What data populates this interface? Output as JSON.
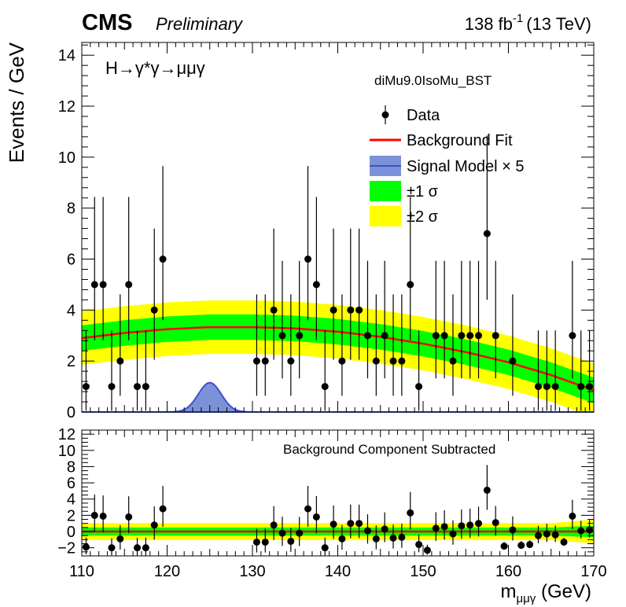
{
  "header": {
    "experiment": "CMS",
    "status": "Preliminary",
    "lumi_value": "138 fb",
    "lumi_exp": "-1",
    "lumi_energy": "(13 TeV)"
  },
  "labels": {
    "process": "H→γ*γ→μμγ",
    "category": "diMu9.0IsoMu_BST",
    "residual_note": "Background Component Subtracted",
    "x_title": "m",
    "x_title_sub": "μμγ",
    "x_unit": " (GeV)",
    "y_title": "Events / GeV"
  },
  "legend": {
    "data": "Data",
    "bkg": "Background Fit",
    "signal": "Signal Model  × 5",
    "one_sigma": "±1 σ",
    "two_sigma": "±2 σ"
  },
  "colors": {
    "fit": "#ff0000",
    "signal_fill": "#7b93d6",
    "signal_line": "#3f4fcf",
    "one_sigma": "#00ff00",
    "two_sigma": "#ffff00",
    "data": "#000000"
  },
  "chart_data": [
    {
      "type": "scatter",
      "panel": "main",
      "x_range": [
        110,
        170
      ],
      "y_range": [
        0,
        14.5
      ],
      "y_ticks": [
        "0",
        "2",
        "4",
        "6",
        "8",
        "10",
        "12",
        "14"
      ],
      "x_ticks": [
        "110",
        "120",
        "130",
        "140",
        "150",
        "160",
        "170"
      ],
      "data_x": [
        110.5,
        111.5,
        112.5,
        113.5,
        114.5,
        115.5,
        116.5,
        117.5,
        118.5,
        119.5,
        130.5,
        131.5,
        132.5,
        133.5,
        134.5,
        135.5,
        136.5,
        137.5,
        138.5,
        139.5,
        140.5,
        141.5,
        142.5,
        143.5,
        144.5,
        145.5,
        146.5,
        147.5,
        148.5,
        149.5,
        151.5,
        152.5,
        153.5,
        154.5,
        155.5,
        156.5,
        157.5,
        158.5,
        160.5,
        163.5,
        164.5,
        165.5,
        167.5,
        168.5,
        169.5
      ],
      "data_y": [
        1,
        5,
        5,
        1,
        2,
        5,
        1,
        1,
        4,
        6,
        2,
        2,
        4,
        3,
        2,
        3,
        6,
        5,
        1,
        4,
        2,
        4,
        4,
        3,
        2,
        3,
        2,
        2,
        5,
        1,
        3,
        3,
        2,
        3,
        3,
        3,
        7,
        3,
        2,
        1,
        1,
        1,
        3,
        1,
        1
      ],
      "background_fit": {
        "x": [
          110,
          115,
          120,
          125,
          130,
          135,
          140,
          145,
          150,
          155,
          160,
          165,
          170
        ],
        "y": [
          2.9,
          3.1,
          3.25,
          3.33,
          3.33,
          3.28,
          3.15,
          2.95,
          2.68,
          2.35,
          1.95,
          1.45,
          0.85
        ],
        "one_sigma_halfwidth": 0.5,
        "two_sigma_halfwidth": 1.05
      },
      "signal_model": {
        "mean": 125,
        "sigma": 1.35,
        "peak": 1.15,
        "scale": "× 5"
      }
    },
    {
      "type": "scatter",
      "panel": "residual",
      "x_range": [
        110,
        170
      ],
      "y_range": [
        -3,
        12.5
      ],
      "y_ticks": [
        "−2",
        "0",
        "2",
        "4",
        "6",
        "8",
        "10",
        "12"
      ],
      "x_ticks": [
        "110",
        "120",
        "130",
        "140",
        "150",
        "160",
        "170"
      ],
      "data_x": [
        110.5,
        111.5,
        112.5,
        113.5,
        114.5,
        115.5,
        116.5,
        117.5,
        118.5,
        119.5,
        130.5,
        131.5,
        132.5,
        133.5,
        134.5,
        135.5,
        136.5,
        137.5,
        138.5,
        139.5,
        140.5,
        141.5,
        142.5,
        143.5,
        144.5,
        145.5,
        146.5,
        147.5,
        148.5,
        149.5,
        150.5,
        151.5,
        152.5,
        153.5,
        154.5,
        155.5,
        156.5,
        157.5,
        158.5,
        159.5,
        160.5,
        161.5,
        162.5,
        163.5,
        164.5,
        165.5,
        166.5,
        167.5,
        168.5,
        169.5
      ],
      "data_y": [
        -1.9,
        2.0,
        1.9,
        -2.0,
        -0.9,
        1.8,
        -2.0,
        -2.0,
        0.8,
        2.8,
        -1.3,
        -1.3,
        0.8,
        -0.2,
        -1.2,
        -0.2,
        2.8,
        1.8,
        -2.0,
        0.9,
        -0.9,
        1.0,
        1.0,
        0.1,
        -0.9,
        0.3,
        -0.8,
        -0.7,
        2.3,
        -1.6,
        -2.3,
        0.4,
        0.6,
        -0.3,
        0.7,
        0.8,
        1.0,
        5.1,
        1.1,
        -1.8,
        0.2,
        -1.7,
        -1.6,
        -0.5,
        -0.3,
        -0.4,
        -1.3,
        1.9,
        0.1,
        0.2
      ],
      "one_sigma_halfwidth": 0.5,
      "two_sigma_halfwidth": 1.05
    }
  ]
}
